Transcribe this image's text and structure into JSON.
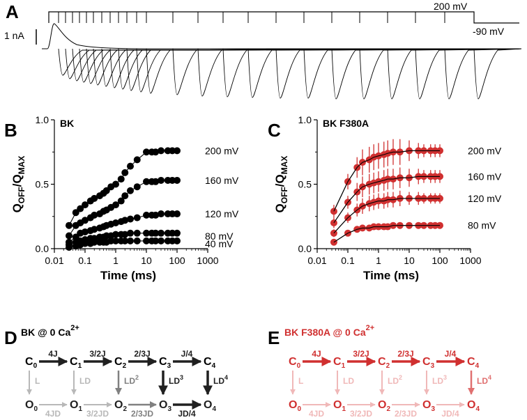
{
  "panels": {
    "a": {
      "letter": "A",
      "voltage_high": "200 mV",
      "voltage_low": "-90 mV",
      "scale_bar": "1 nA"
    },
    "b": {
      "letter": "B"
    },
    "c": {
      "letter": "C"
    },
    "d": {
      "letter": "D"
    },
    "e": {
      "letter": "E"
    }
  },
  "colors": {
    "bk": "#000000",
    "mutant": "#d03030",
    "mutant_light": "#f0b0b0",
    "grey": "#b8b8b8",
    "dark_grey": "#707070"
  },
  "chart_data": [
    {
      "type": "scatter",
      "title": "BK",
      "xlabel": "Time (ms)",
      "ylabel_main": "Q",
      "ylabel_sub1": "OFF",
      "ylabel_sep": "/Q",
      "ylabel_sub2": "MAX",
      "x_scale": "log",
      "xlim": [
        0.01,
        1000
      ],
      "ylim": [
        0,
        1
      ],
      "xticks": [
        "0.01",
        "0.1",
        "1",
        "10",
        "100",
        "1000"
      ],
      "yticks": [
        "0.0",
        "0.5",
        "1.0"
      ],
      "x": [
        0.03,
        0.05,
        0.07,
        0.1,
        0.15,
        0.2,
        0.3,
        0.4,
        0.5,
        0.7,
        1,
        1.5,
        2,
        3,
        5,
        10,
        15,
        20,
        30,
        50,
        70,
        100
      ],
      "series": [
        {
          "name": "200 mV",
          "values": [
            0.18,
            0.28,
            0.31,
            0.34,
            0.37,
            0.39,
            0.41,
            0.43,
            0.45,
            0.48,
            0.5,
            0.54,
            0.59,
            0.64,
            0.69,
            0.75,
            0.75,
            0.75,
            0.76,
            0.76,
            0.76,
            0.76
          ]
        },
        {
          "name": "160 mV",
          "values": [
            0.1,
            0.18,
            0.2,
            0.22,
            0.24,
            0.26,
            0.27,
            0.29,
            0.3,
            0.32,
            0.34,
            0.37,
            0.41,
            0.45,
            0.48,
            0.52,
            0.52,
            0.52,
            0.53,
            0.53,
            0.53,
            0.53
          ]
        },
        {
          "name": "120 mV",
          "values": [
            0.05,
            0.09,
            0.12,
            0.13,
            0.14,
            0.15,
            0.16,
            0.17,
            0.18,
            0.19,
            0.2,
            0.21,
            0.22,
            0.23,
            0.24,
            0.26,
            0.26,
            0.26,
            0.27,
            0.27,
            0.27,
            0.27
          ]
        },
        {
          "name": "80 mV",
          "values": [
            0.03,
            0.05,
            0.06,
            0.07,
            0.08,
            0.08,
            0.09,
            0.09,
            0.1,
            0.1,
            0.11,
            0.11,
            0.11,
            0.12,
            0.12,
            0.12,
            0.12,
            0.12,
            0.12,
            0.12,
            0.12,
            0.12
          ]
        },
        {
          "name": "40 mV",
          "values": [
            0.01,
            0.02,
            0.03,
            0.04,
            0.04,
            0.05,
            0.05,
            0.05,
            0.05,
            0.06,
            0.06,
            0.06,
            0.06,
            0.06,
            0.06,
            0.06,
            0.06,
            0.06,
            0.06,
            0.06,
            0.06,
            0.06
          ]
        }
      ]
    },
    {
      "type": "scatter",
      "title": "BK F380A",
      "xlabel": "Time (ms)",
      "ylabel_main": "Q",
      "ylabel_sub1": "OFF",
      "ylabel_sep": "/Q",
      "ylabel_sub2": "MAX",
      "x_scale": "log",
      "xlim": [
        0.01,
        1000
      ],
      "ylim": [
        0,
        1
      ],
      "xticks": [
        "0.01",
        "0.1",
        "1",
        "10",
        "100",
        "1000"
      ],
      "yticks": [
        "0.0",
        "0.5",
        "1.0"
      ],
      "error_bars": true,
      "x": [
        0.035,
        0.1,
        0.2,
        0.3,
        0.5,
        0.7,
        1,
        1.5,
        2,
        3,
        5,
        10,
        20,
        30,
        50,
        70,
        100
      ],
      "series": [
        {
          "name": "200 mV",
          "values": [
            0.29,
            0.52,
            0.63,
            0.67,
            0.69,
            0.71,
            0.72,
            0.73,
            0.74,
            0.75,
            0.75,
            0.76,
            0.76,
            0.76,
            0.76,
            0.76,
            0.76
          ],
          "err": [
            0.05,
            0.06,
            0.08,
            0.1,
            0.1,
            0.1,
            0.1,
            0.1,
            0.1,
            0.1,
            0.1,
            0.08,
            0.06,
            0.05,
            0.05,
            0.05,
            0.05
          ]
        },
        {
          "name": "160 mV",
          "values": [
            0.2,
            0.36,
            0.44,
            0.48,
            0.5,
            0.51,
            0.52,
            0.53,
            0.54,
            0.54,
            0.55,
            0.55,
            0.56,
            0.56,
            0.56,
            0.56,
            0.56
          ],
          "err": [
            0.04,
            0.05,
            0.07,
            0.08,
            0.08,
            0.08,
            0.08,
            0.08,
            0.08,
            0.08,
            0.08,
            0.07,
            0.06,
            0.05,
            0.05,
            0.05,
            0.05
          ]
        },
        {
          "name": "120 mV",
          "values": [
            0.12,
            0.24,
            0.3,
            0.33,
            0.35,
            0.36,
            0.37,
            0.37,
            0.38,
            0.38,
            0.39,
            0.39,
            0.39,
            0.39,
            0.39,
            0.39,
            0.39
          ],
          "err": [
            0.03,
            0.04,
            0.05,
            0.06,
            0.06,
            0.06,
            0.06,
            0.06,
            0.06,
            0.06,
            0.06,
            0.05,
            0.05,
            0.04,
            0.04,
            0.04,
            0.04
          ]
        },
        {
          "name": "80 mV",
          "values": [
            0.05,
            0.12,
            0.15,
            0.16,
            0.16,
            0.17,
            0.17,
            0.17,
            0.17,
            0.18,
            0.18,
            0.18,
            0.18,
            0.18,
            0.18,
            0.18,
            0.18
          ],
          "err": [
            0.02,
            0.02,
            0.02,
            0.02,
            0.02,
            0.02,
            0.02,
            0.02,
            0.02,
            0.02,
            0.02,
            0.02,
            0.02,
            0.02,
            0.02,
            0.02,
            0.02
          ]
        }
      ]
    }
  ],
  "schemes": [
    {
      "title": "BK @ 0 Ca",
      "title_sup": "2+",
      "top": [
        {
          "s": "C",
          "sub": "0"
        },
        {
          "s": "C",
          "sub": "1"
        },
        {
          "s": "C",
          "sub": "2"
        },
        {
          "s": "C",
          "sub": "3"
        },
        {
          "s": "C",
          "sub": "4"
        }
      ],
      "bottom": [
        {
          "s": "O",
          "sub": "0"
        },
        {
          "s": "O",
          "sub": "1"
        },
        {
          "s": "O",
          "sub": "2"
        },
        {
          "s": "O",
          "sub": "3"
        },
        {
          "s": "O",
          "sub": "4"
        }
      ],
      "top_rates": [
        "4J",
        "3/2J",
        "2/3J",
        "J/4"
      ],
      "bottom_rates": [
        "4JD",
        "3/2JD",
        "2/3JD",
        "JD/4"
      ],
      "vertical_rates": [
        {
          "t": "L",
          "sup": ""
        },
        {
          "t": "LD",
          "sup": ""
        },
        {
          "t": "LD",
          "sup": "2"
        },
        {
          "t": "LD",
          "sup": "3"
        },
        {
          "t": "LD",
          "sup": "4"
        }
      ]
    },
    {
      "title": "BK F380A @ 0 Ca",
      "title_sup": "2+",
      "top": [
        {
          "s": "C",
          "sub": "0"
        },
        {
          "s": "C",
          "sub": "1"
        },
        {
          "s": "C",
          "sub": "2"
        },
        {
          "s": "C",
          "sub": "3"
        },
        {
          "s": "C",
          "sub": "4"
        }
      ],
      "bottom": [
        {
          "s": "O",
          "sub": "0"
        },
        {
          "s": "O",
          "sub": "1"
        },
        {
          "s": "O",
          "sub": "2"
        },
        {
          "s": "O",
          "sub": "3"
        },
        {
          "s": "O",
          "sub": "4"
        }
      ],
      "top_rates": [
        "4J",
        "3/2J",
        "2/3J",
        "J/4"
      ],
      "bottom_rates": [
        "4JD",
        "3/2JD",
        "2/3JD",
        "JD/4"
      ],
      "vertical_rates": [
        {
          "t": "L",
          "sup": ""
        },
        {
          "t": "LD",
          "sup": ""
        },
        {
          "t": "LD",
          "sup": "2"
        },
        {
          "t": "LD",
          "sup": "3"
        },
        {
          "t": "LD",
          "sup": "4"
        }
      ]
    }
  ]
}
